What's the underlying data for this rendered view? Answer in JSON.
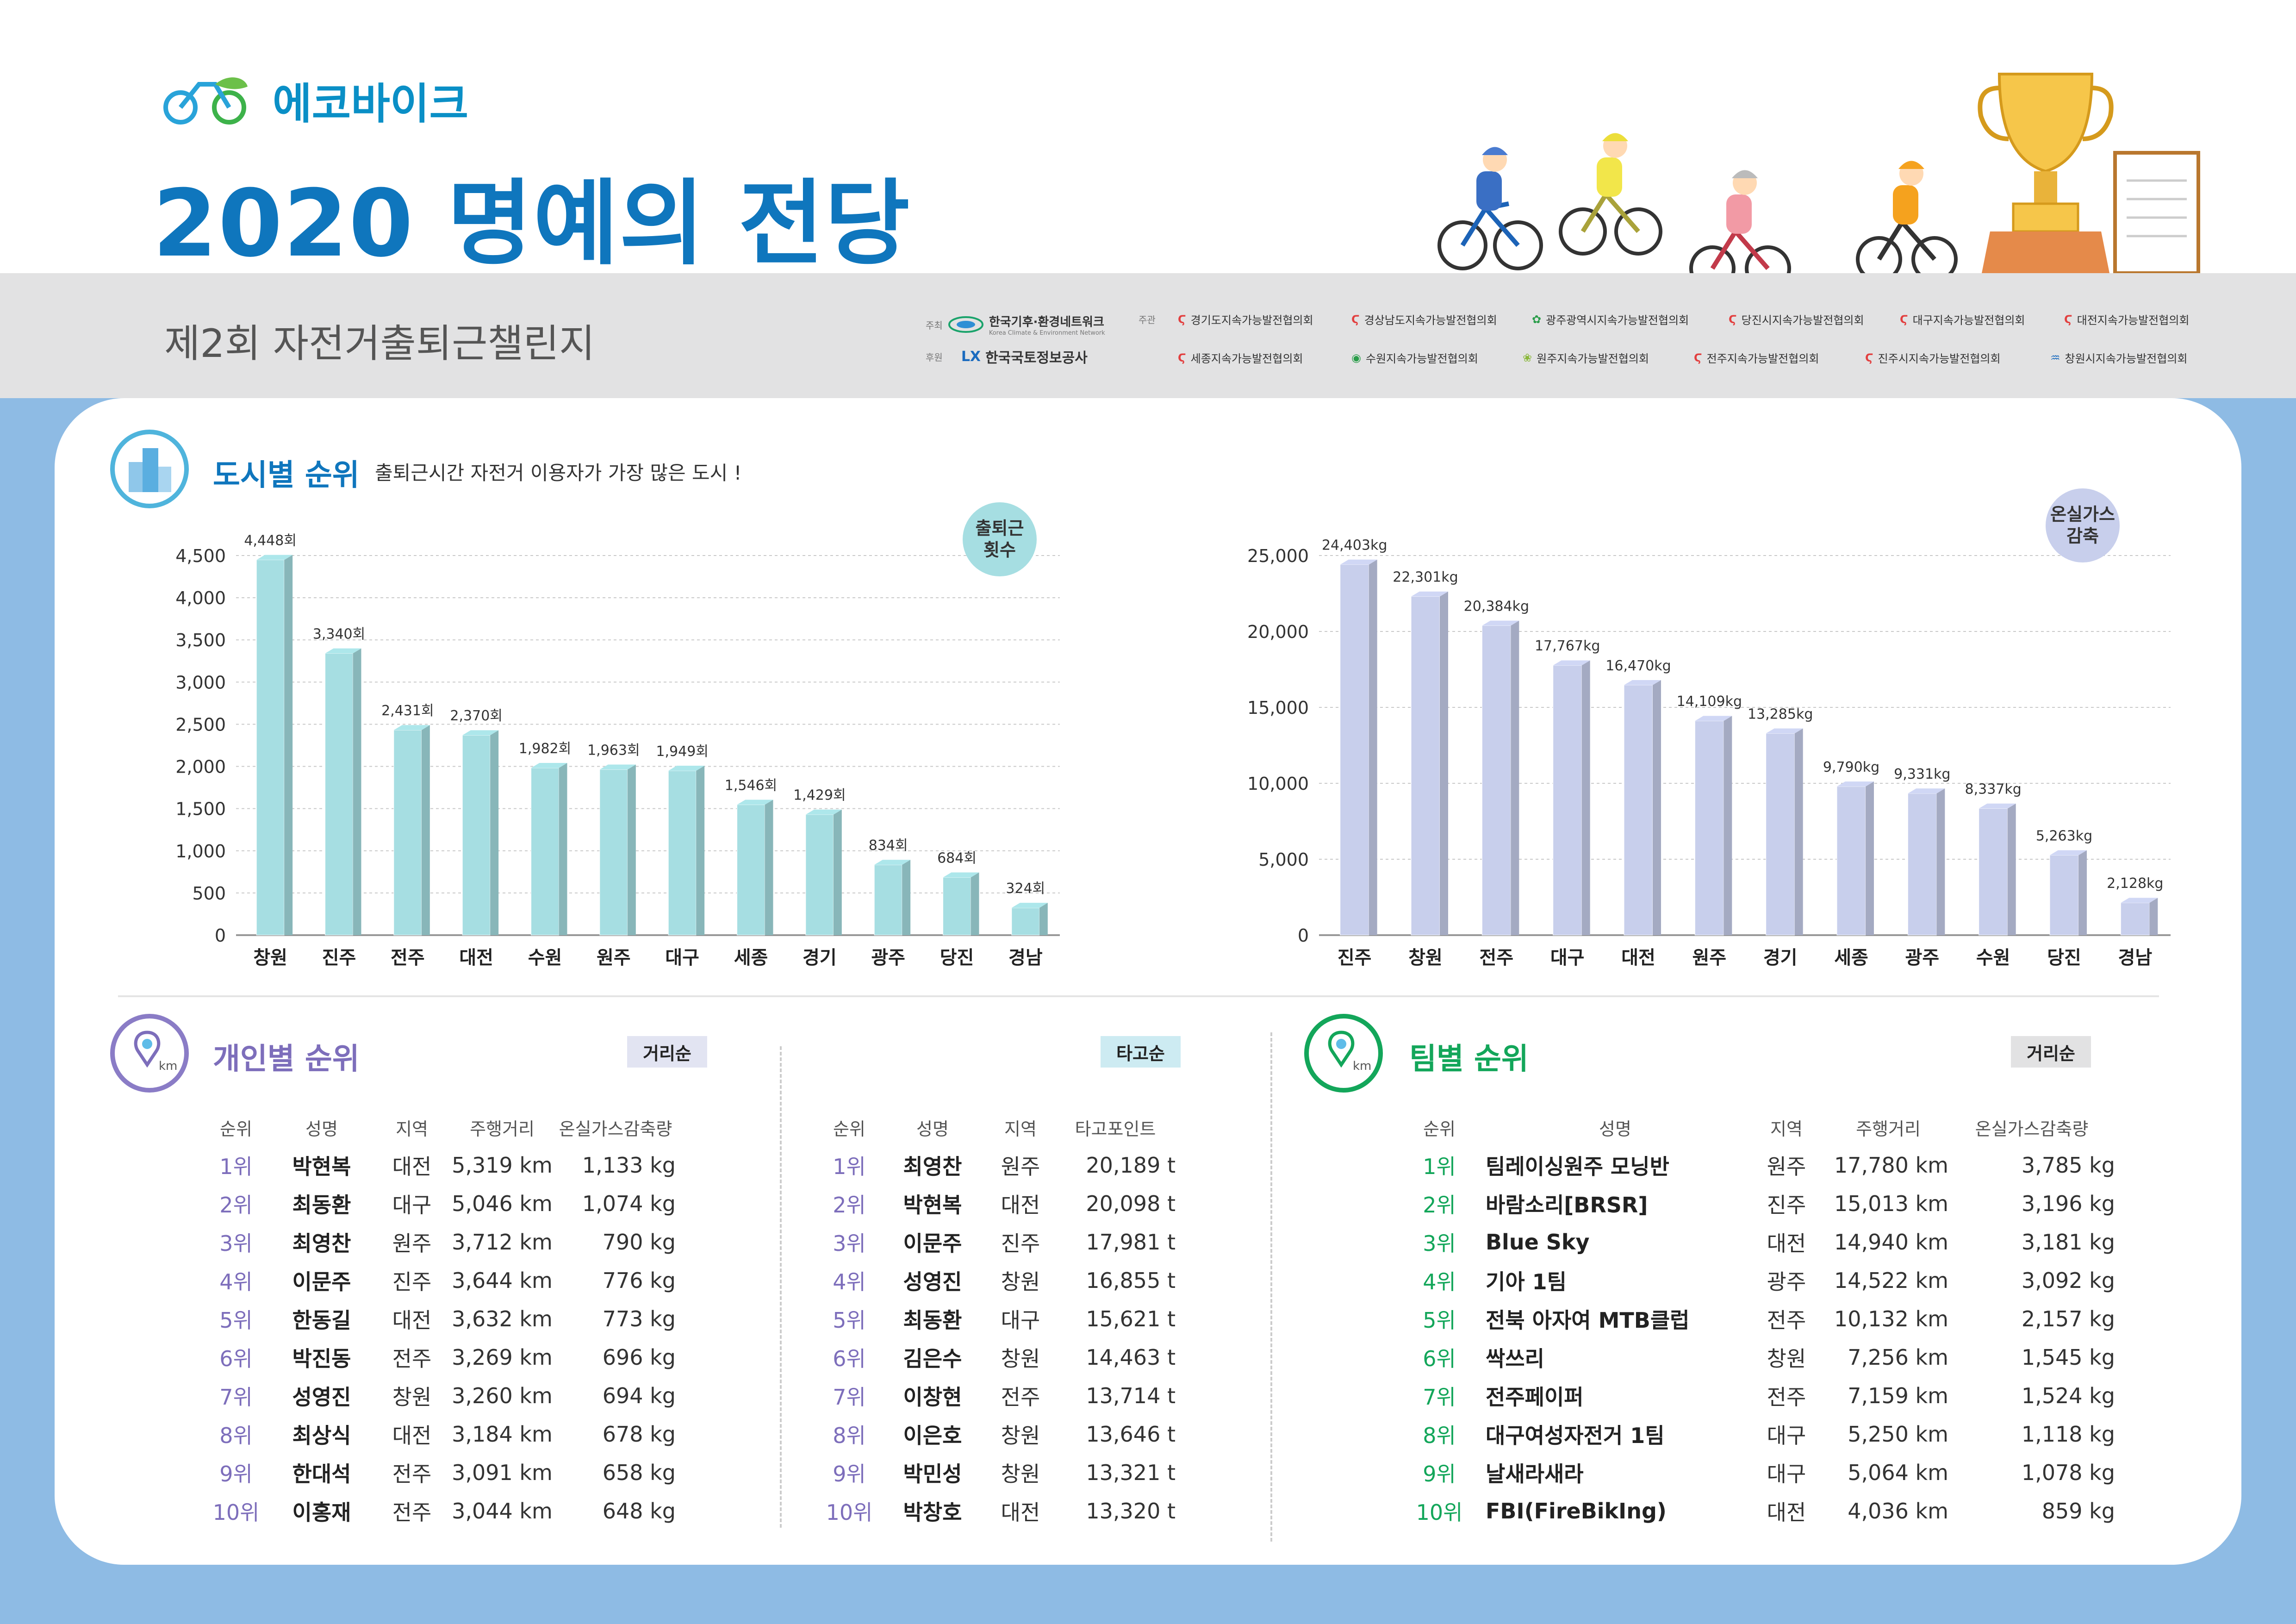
{
  "header": {
    "brand_name": "에코바이크",
    "title": "2020 명예의 전당",
    "subtitle": "제2회 자전거출퇴근챌린지",
    "host_label": "주최",
    "host_org": "한국기후·환경네트워크",
    "host_org_en": "Korea Climate & Environment Network",
    "sponsor_label": "후원",
    "sponsor_org": "한국국토정보공사",
    "sponsor_mark": "LX",
    "organizer_label": "주관",
    "organizers": [
      "경기도지속가능발전협의회",
      "경상남도지속가능발전협의회",
      "광주광역시지속가능발전협의회",
      "당진시지속가능발전협의회",
      "대구지속가능발전협의회",
      "대전지속가능발전협의회",
      "세종지속가능발전협의회",
      "수원지속가능발전협의회",
      "원주지속가능발전협의회",
      "전주지속가능발전협의회",
      "진주시지속가능발전협의회",
      "창원시지속가능발전협의회"
    ]
  },
  "city_section": {
    "title": "도시별 순위",
    "description": "출퇴근시간 자전거 이용자가 가장 많은 도시 !"
  },
  "chart_data": [
    {
      "type": "bar",
      "title": "출퇴근 횟수",
      "title_lines": [
        "출퇴근",
        "횟수"
      ],
      "categories": [
        "창원",
        "진주",
        "전주",
        "대전",
        "수원",
        "원주",
        "대구",
        "세종",
        "경기",
        "광주",
        "당진",
        "경남"
      ],
      "values": [
        4448,
        3340,
        2431,
        2370,
        1982,
        1963,
        1949,
        1546,
        1429,
        834,
        684,
        324
      ],
      "value_labels": [
        "4,448회",
        "3,340회",
        "2,431회",
        "2,370회",
        "1,982회",
        "1,963회",
        "1,949회",
        "1,546회",
        "1,429회",
        "834회",
        "684회",
        "324회"
      ],
      "yticks": [
        "4,500",
        "4,000",
        "3,500",
        "3,000",
        "2,500",
        "2,000",
        "1,500",
        "1,000",
        "500",
        "0"
      ],
      "ylim": [
        0,
        4500
      ],
      "grid": true,
      "color": "#a6dee2"
    },
    {
      "type": "bar",
      "title": "온실가스 감축",
      "title_lines": [
        "온실가스",
        "감축"
      ],
      "categories": [
        "진주",
        "창원",
        "전주",
        "대구",
        "대전",
        "원주",
        "경기",
        "세종",
        "광주",
        "수원",
        "당진",
        "경남"
      ],
      "values": [
        24403,
        22301,
        20384,
        17767,
        16470,
        14109,
        13285,
        9790,
        9331,
        8337,
        5263,
        2128
      ],
      "value_labels": [
        "24,403kg",
        "22,301kg",
        "20,384kg",
        "17,767kg",
        "16,470kg",
        "14,109kg",
        "13,285kg",
        "9,790kg",
        "9,331kg",
        "8,337kg",
        "5,263kg",
        "2,128kg"
      ],
      "yticks": [
        "25,000",
        "20,000",
        "15,000",
        "10,000",
        "5,000",
        "0"
      ],
      "ylim": [
        0,
        25000
      ],
      "grid": true,
      "color": "#c8cfec"
    }
  ],
  "personal": {
    "title": "개인별 순위",
    "icon_unit": "km",
    "distance": {
      "tag": "거리순",
      "headers": [
        "순위",
        "성명",
        "지역",
        "주행거리",
        "온실가스감축량"
      ],
      "rows": [
        [
          "1위",
          "박현복",
          "대전",
          "5,319 km",
          "1,133 kg"
        ],
        [
          "2위",
          "최동환",
          "대구",
          "5,046 km",
          "1,074 kg"
        ],
        [
          "3위",
          "최영찬",
          "원주",
          "3,712 km",
          "790 kg"
        ],
        [
          "4위",
          "이문주",
          "진주",
          "3,644 km",
          "776 kg"
        ],
        [
          "5위",
          "한동길",
          "대전",
          "3,632 km",
          "773 kg"
        ],
        [
          "6위",
          "박진동",
          "전주",
          "3,269 km",
          "696 kg"
        ],
        [
          "7위",
          "성영진",
          "창원",
          "3,260 km",
          "694 kg"
        ],
        [
          "8위",
          "최상식",
          "대전",
          "3,184 km",
          "678 kg"
        ],
        [
          "9위",
          "한대석",
          "전주",
          "3,091 km",
          "658 kg"
        ],
        [
          "10위",
          "이홍재",
          "전주",
          "3,044 km",
          "648 kg"
        ]
      ]
    },
    "ride": {
      "tag": "타고순",
      "headers": [
        "순위",
        "성명",
        "지역",
        "타고포인트"
      ],
      "rows": [
        [
          "1위",
          "최영찬",
          "원주",
          "20,189 t"
        ],
        [
          "2위",
          "박현복",
          "대전",
          "20,098 t"
        ],
        [
          "3위",
          "이문주",
          "진주",
          "17,981 t"
        ],
        [
          "4위",
          "성영진",
          "창원",
          "16,855 t"
        ],
        [
          "5위",
          "최동환",
          "대구",
          "15,621 t"
        ],
        [
          "6위",
          "김은수",
          "창원",
          "14,463 t"
        ],
        [
          "7위",
          "이창현",
          "전주",
          "13,714 t"
        ],
        [
          "8위",
          "이은호",
          "창원",
          "13,646 t"
        ],
        [
          "9위",
          "박민성",
          "창원",
          "13,321 t"
        ],
        [
          "10위",
          "박창호",
          "대전",
          "13,320 t"
        ]
      ]
    }
  },
  "team": {
    "title": "팀별 순위",
    "icon_unit": "km",
    "tag": "거리순",
    "headers": [
      "순위",
      "성명",
      "지역",
      "주행거리",
      "온실가스감축량"
    ],
    "rows": [
      [
        "1위",
        "팀레이싱원주 모닝반",
        "원주",
        "17,780 km",
        "3,785 kg"
      ],
      [
        "2위",
        "바람소리[BRSR]",
        "진주",
        "15,013 km",
        "3,196 kg"
      ],
      [
        "3위",
        "Blue Sky",
        "대전",
        "14,940 km",
        "3,181 kg"
      ],
      [
        "4위",
        "기아 1팀",
        "광주",
        "14,522 km",
        "3,092 kg"
      ],
      [
        "5위",
        "전북 아자여 MTB클럽",
        "전주",
        "10,132 km",
        "2,157 kg"
      ],
      [
        "6위",
        "싹쓰리",
        "창원",
        "7,256 km",
        "1,545 kg"
      ],
      [
        "7위",
        "전주페이퍼",
        "전주",
        "7,159 km",
        "1,524 kg"
      ],
      [
        "8위",
        "대구여성자전거 1팀",
        "대구",
        "5,250 km",
        "1,118 kg"
      ],
      [
        "9위",
        "날새라새라",
        "대구",
        "5,064 km",
        "1,078 kg"
      ],
      [
        "10위",
        "FBI(FireBikIng)",
        "대전",
        "4,036 km",
        "859 kg"
      ]
    ]
  },
  "colors": {
    "brand_blue": "#0f76bd",
    "personal_purple": "#7d6ebb",
    "team_green": "#13a65a",
    "bar_teal": "#a6dee2",
    "bar_lavender": "#c8cfec",
    "background_blue": "#8ebbe4"
  }
}
